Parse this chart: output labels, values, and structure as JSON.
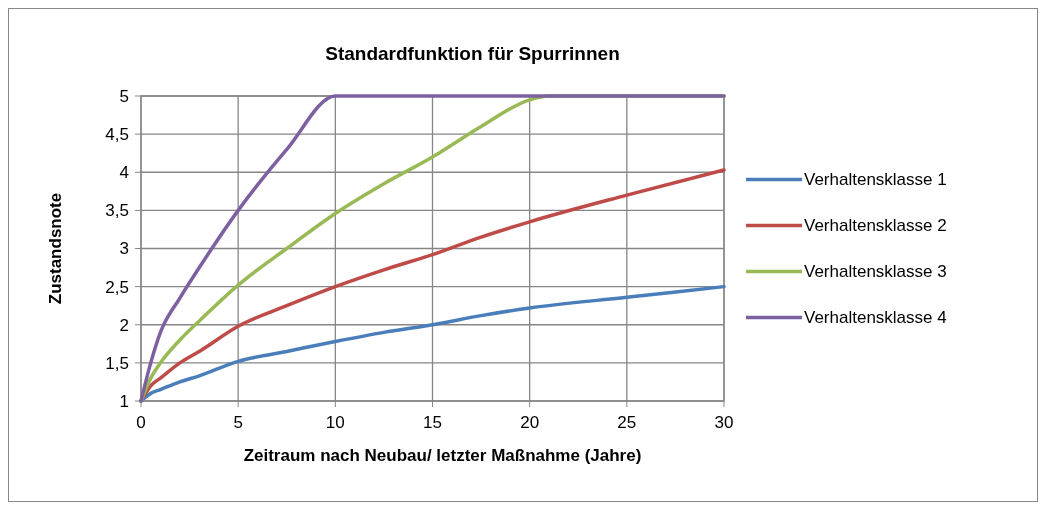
{
  "chart_data": {
    "type": "line",
    "title": "Standardfunktion für Spurrinnen",
    "xlabel": "Zeitraum nach  Neubau/ letzter Maßnahme  (Jahre)",
    "ylabel": "Zustandsnote",
    "xlim": [
      0,
      30
    ],
    "xticks": [
      0,
      5,
      10,
      15,
      20,
      25,
      30
    ],
    "ylim": [
      1,
      5
    ],
    "yticks": [
      1,
      {
        "value": 1.5,
        "label": "1,5"
      },
      2,
      {
        "value": 2.5,
        "label": "2,5"
      },
      3,
      {
        "value": 3.5,
        "label": "3,5"
      },
      4,
      {
        "value": 4.5,
        "label": "4,5"
      },
      5
    ],
    "grid": true,
    "legend": "right",
    "marker": "none",
    "line_style": "solid",
    "series": [
      {
        "name": "Verhaltensklasse 1",
        "color": "#4a7ebb",
        "x": [
          0,
          0.5,
          1,
          2,
          3,
          5,
          7.5,
          10,
          12.5,
          15,
          17.5,
          20,
          25,
          30
        ],
        "values": [
          1,
          1.1,
          1.15,
          1.25,
          1.33,
          1.52,
          1.65,
          1.78,
          1.9,
          2.0,
          2.12,
          2.22,
          2.36,
          2.5
        ]
      },
      {
        "name": "Verhaltensklasse 2",
        "color": "#be4b48",
        "x": [
          0,
          0.5,
          1,
          2,
          3,
          5,
          7.5,
          10,
          12.5,
          15,
          17.5,
          20,
          25,
          30
        ],
        "values": [
          1,
          1.2,
          1.3,
          1.5,
          1.65,
          1.98,
          2.25,
          2.5,
          2.72,
          2.92,
          3.15,
          3.35,
          3.7,
          4.03
        ]
      },
      {
        "name": "Verhaltensklasse 3",
        "color": "#98b954",
        "x": [
          0,
          0.5,
          1,
          2,
          3,
          5,
          7.5,
          10,
          12.5,
          15,
          17.5,
          20,
          21,
          25,
          30
        ],
        "values": [
          1,
          1.3,
          1.5,
          1.8,
          2.05,
          2.52,
          3.0,
          3.46,
          3.85,
          4.2,
          4.6,
          4.95,
          5,
          5,
          5
        ]
      },
      {
        "name": "Verhaltensklasse 4",
        "color": "#7d60a0",
        "x": [
          0,
          0.5,
          1,
          2,
          3,
          5,
          7.5,
          10,
          15,
          20,
          25,
          30
        ],
        "values": [
          1,
          1.5,
          1.9,
          2.35,
          2.75,
          3.5,
          4.3,
          5,
          5,
          5,
          5,
          5
        ]
      }
    ]
  }
}
